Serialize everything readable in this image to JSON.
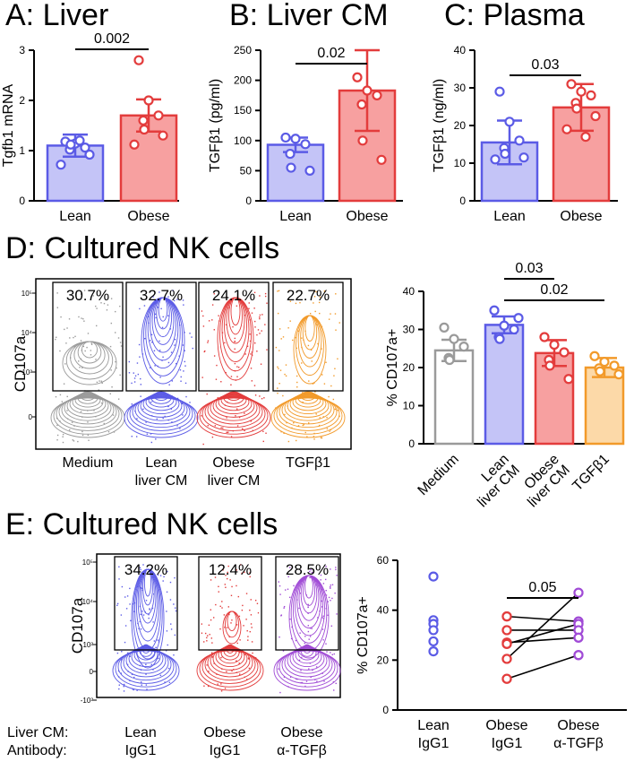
{
  "panels": {
    "A": {
      "title": "A: Liver"
    },
    "B": {
      "title": "B: Liver CM"
    },
    "C": {
      "title": "C: Plasma"
    },
    "D": {
      "title": "D: Cultured NK cells"
    },
    "E": {
      "title": "E: Cultured NK cells"
    }
  },
  "colors": {
    "blue": "#5b5be6",
    "blue_fill": "#c4c4f7",
    "red": "#e33c3c",
    "red_fill": "#f7a0a0",
    "grey": "#9a9a9a",
    "grey_fill": "#ffffff",
    "orange": "#f29a2a",
    "orange_fill": "#fcd9a8",
    "purple": "#a04bd6",
    "black": "#000000"
  },
  "flowD": {
    "y_axis_label": "CD107a",
    "y_ticks": [
      "10⁵",
      "10⁴",
      "10³",
      "0"
    ],
    "gates": [
      {
        "pct": "30.7%",
        "label1": "Medium",
        "label2": "",
        "color": "grey"
      },
      {
        "pct": "32.7%",
        "label1": "Lean",
        "label2": "liver CM",
        "color": "blue"
      },
      {
        "pct": "24.1%",
        "label1": "Obese",
        "label2": "liver CM",
        "color": "red"
      },
      {
        "pct": "22.7%",
        "label1": "TGFβ1",
        "label2": "",
        "color": "orange"
      }
    ]
  },
  "flowE": {
    "y_axis_label": "CD107a",
    "y_ticks": [
      "10⁵",
      "10⁴",
      "10³",
      "0",
      "-10³"
    ],
    "row_labels": [
      "Liver CM:",
      "Antibody:"
    ],
    "gates": [
      {
        "pct": "34.2%",
        "label1": "Lean",
        "label2": "IgG1",
        "color": "blue"
      },
      {
        "pct": "12.4%",
        "label1": "Obese",
        "label2": "IgG1",
        "color": "red"
      },
      {
        "pct": "28.5%",
        "label1": "Obese",
        "label2": "α-TGFβ",
        "color": "purple"
      }
    ]
  },
  "chart_data": [
    {
      "id": "A",
      "type": "bar",
      "ylabel": "Tgfb1 mRNA",
      "ylim": [
        0,
        3
      ],
      "yticks": [
        0,
        1,
        2,
        3
      ],
      "categories": [
        "Lean",
        "Obese"
      ],
      "means": [
        1.1,
        1.7
      ],
      "sd": [
        0.22,
        0.32
      ],
      "points": [
        [
          1.18,
          1.14,
          1.06,
          1.02,
          1.12,
          0.92,
          0.72,
          1.2
        ],
        [
          2.8,
          2.0,
          1.7,
          1.6,
          1.42,
          1.3,
          1.12
        ]
      ],
      "colors": [
        "blue",
        "red"
      ],
      "pvalues": [
        {
          "from": 0,
          "to": 1,
          "text": "0.002"
        }
      ]
    },
    {
      "id": "B",
      "type": "bar",
      "ylabel": "TGFβ1 (pg/ml)",
      "ylim": [
        0,
        250
      ],
      "yticks": [
        0,
        50,
        100,
        150,
        200,
        250
      ],
      "categories": [
        "Lean",
        "Obese"
      ],
      "means": [
        93,
        183
      ],
      "sd": [
        12,
        67
      ],
      "points": [
        [
          105,
          103,
          94,
          78,
          55,
          50
        ],
        [
          205,
          183,
          175,
          160,
          100,
          68
        ]
      ],
      "colors": [
        "blue",
        "red"
      ],
      "pvalues": [
        {
          "from": 0,
          "to": 1,
          "text": "0.02"
        }
      ]
    },
    {
      "id": "C",
      "type": "bar",
      "ylabel": "TGFβ1 (ng/ml)",
      "ylim": [
        0,
        40
      ],
      "yticks": [
        0,
        10,
        20,
        30,
        40
      ],
      "categories": [
        "Lean",
        "Obese"
      ],
      "means": [
        15.5,
        24.8
      ],
      "sd": [
        5.8,
        6.2
      ],
      "points": [
        [
          29,
          21,
          16,
          14,
          12.5,
          11.5,
          11
        ],
        [
          31,
          29,
          28,
          26,
          24.5,
          22.5,
          19,
          17
        ]
      ],
      "colors": [
        "blue",
        "red"
      ],
      "pvalues": [
        {
          "from": 0,
          "to": 1,
          "text": "0.03"
        }
      ]
    },
    {
      "id": "D",
      "type": "bar",
      "ylabel": "% CD107a+",
      "ylim": [
        0,
        40
      ],
      "yticks": [
        0,
        10,
        20,
        30,
        40
      ],
      "categories": [
        "Medium",
        "Lean liver CM",
        "Obese liver CM",
        "TGFβ1"
      ],
      "means": [
        24.5,
        31.2,
        23.8,
        20.0
      ],
      "sd": [
        2.8,
        2.2,
        3.4,
        2.5
      ],
      "points": [
        [
          30.5,
          27.5,
          25.5,
          22.5,
          22
        ],
        [
          35,
          31,
          30,
          28,
          27.5,
          33
        ],
        [
          28,
          26,
          24,
          22,
          20.5,
          17
        ],
        [
          23,
          21.5,
          20.5,
          19.8,
          19,
          18.2
        ]
      ],
      "colors": [
        "grey",
        "blue",
        "red",
        "orange"
      ],
      "pvalues": [
        {
          "from": 1,
          "to": 2,
          "text": "0.03"
        },
        {
          "from": 1,
          "to": 3,
          "text": "0.02"
        }
      ]
    },
    {
      "id": "E",
      "type": "scatter",
      "ylabel": "% CD107a+",
      "ylim": [
        0,
        60
      ],
      "yticks": [
        0,
        20,
        40,
        60
      ],
      "categories": [
        "Lean IgG1",
        "Obese IgG1",
        "Obese α-TGFβ"
      ],
      "points": [
        [
          53.5,
          36,
          34.5,
          32,
          27.5,
          23.5
        ],
        [
          37.5,
          32,
          27,
          26.5,
          20.5,
          12.5
        ],
        [
          47,
          35.5,
          34.5,
          32,
          29,
          22
        ]
      ],
      "colors": [
        "blue",
        "red",
        "purple"
      ],
      "pairs": [
        [
          0,
          1
        ],
        [
          1,
          2
        ]
      ],
      "pvalues": [
        {
          "from": 1,
          "to": 2,
          "text": "0.05"
        }
      ]
    }
  ]
}
